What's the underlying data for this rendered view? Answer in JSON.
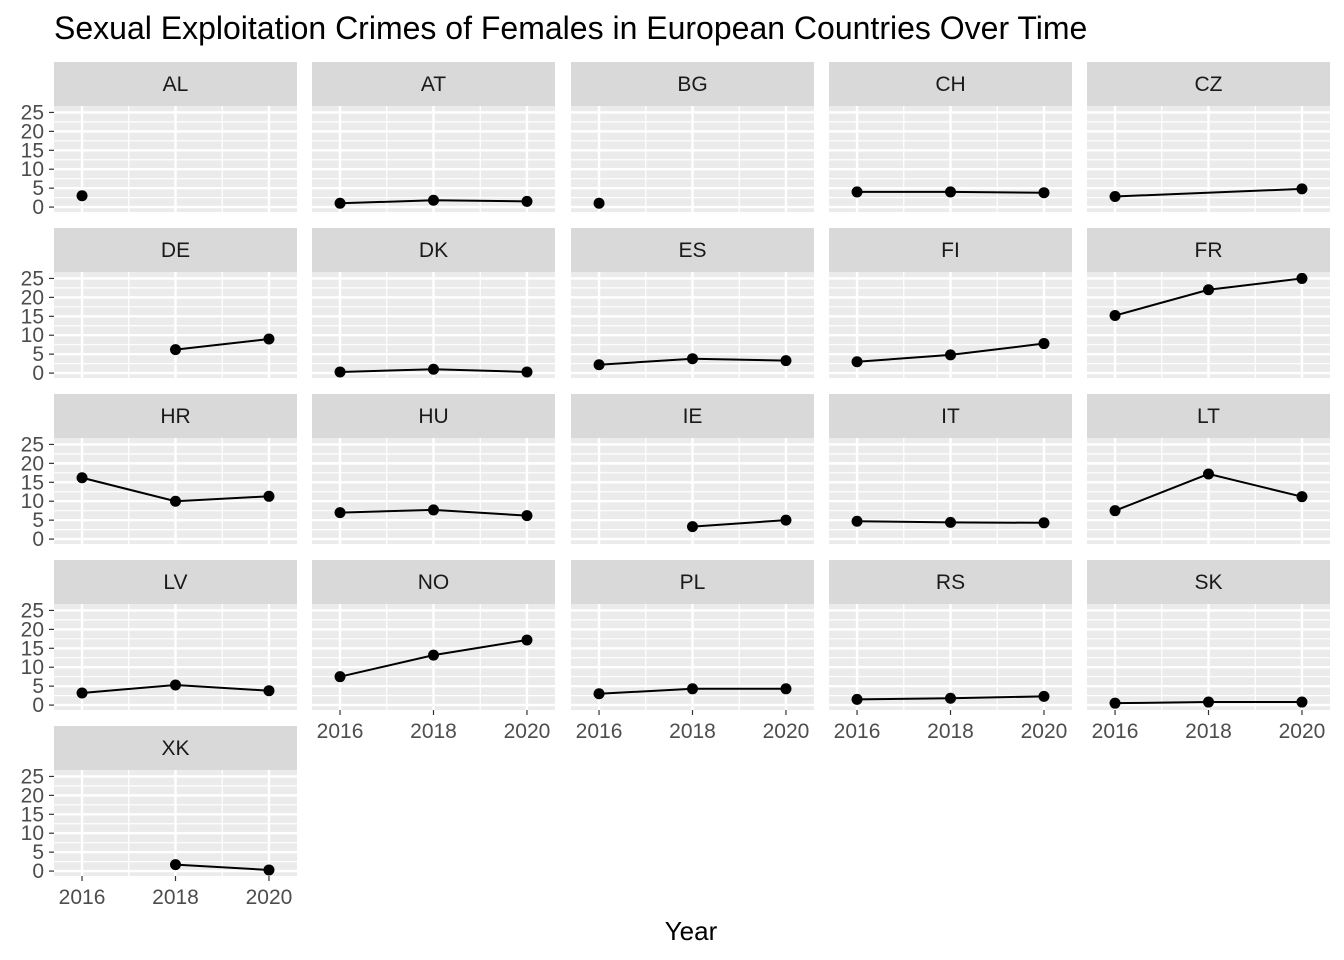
{
  "chart_data": {
    "type": "line",
    "title": "Sexual Exploitation Crimes of Females in European Countries Over Time",
    "xlabel": "Year",
    "ylabel": "",
    "xlim": [
      2015.4,
      2020.6
    ],
    "ylim": [
      -1.3,
      26.7
    ],
    "x_ticks": [
      2016,
      2018,
      2020
    ],
    "y_ticks": [
      0,
      5,
      10,
      15,
      20,
      25
    ],
    "grid": true,
    "panel_background": "#ebebeb",
    "strip_background": "#d9d9d9",
    "line_color": "#000000",
    "point_color": "#000000",
    "facets": [
      {
        "name": "AL",
        "points": [
          {
            "x": 2016,
            "y": 3.0
          }
        ]
      },
      {
        "name": "AT",
        "points": [
          {
            "x": 2016,
            "y": 1.0
          },
          {
            "x": 2018,
            "y": 1.8
          },
          {
            "x": 2020,
            "y": 1.5
          }
        ]
      },
      {
        "name": "BG",
        "points": [
          {
            "x": 2016,
            "y": 1.0
          }
        ]
      },
      {
        "name": "CH",
        "points": [
          {
            "x": 2016,
            "y": 4.0
          },
          {
            "x": 2018,
            "y": 4.0
          },
          {
            "x": 2020,
            "y": 3.8
          }
        ]
      },
      {
        "name": "CZ",
        "points": [
          {
            "x": 2016,
            "y": 2.8
          },
          {
            "x": 2020,
            "y": 4.8
          }
        ]
      },
      {
        "name": "DE",
        "points": [
          {
            "x": 2018,
            "y": 6.2
          },
          {
            "x": 2020,
            "y": 9.0
          }
        ]
      },
      {
        "name": "DK",
        "points": [
          {
            "x": 2016,
            "y": 0.3
          },
          {
            "x": 2018,
            "y": 1.0
          },
          {
            "x": 2020,
            "y": 0.3
          }
        ]
      },
      {
        "name": "ES",
        "points": [
          {
            "x": 2016,
            "y": 2.2
          },
          {
            "x": 2018,
            "y": 3.8
          },
          {
            "x": 2020,
            "y": 3.3
          }
        ]
      },
      {
        "name": "FI",
        "points": [
          {
            "x": 2016,
            "y": 3.0
          },
          {
            "x": 2018,
            "y": 4.8
          },
          {
            "x": 2020,
            "y": 7.8
          }
        ]
      },
      {
        "name": "FR",
        "points": [
          {
            "x": 2016,
            "y": 15.2
          },
          {
            "x": 2018,
            "y": 22.0
          },
          {
            "x": 2020,
            "y": 25.0
          }
        ]
      },
      {
        "name": "HR",
        "points": [
          {
            "x": 2016,
            "y": 16.2
          },
          {
            "x": 2018,
            "y": 10.0
          },
          {
            "x": 2020,
            "y": 11.3
          }
        ]
      },
      {
        "name": "HU",
        "points": [
          {
            "x": 2016,
            "y": 7.0
          },
          {
            "x": 2018,
            "y": 7.7
          },
          {
            "x": 2020,
            "y": 6.2
          }
        ]
      },
      {
        "name": "IE",
        "points": [
          {
            "x": 2018,
            "y": 3.3
          },
          {
            "x": 2020,
            "y": 5.0
          }
        ]
      },
      {
        "name": "IT",
        "points": [
          {
            "x": 2016,
            "y": 4.7
          },
          {
            "x": 2018,
            "y": 4.4
          },
          {
            "x": 2020,
            "y": 4.3
          }
        ]
      },
      {
        "name": "LT",
        "points": [
          {
            "x": 2016,
            "y": 7.5
          },
          {
            "x": 2018,
            "y": 17.2
          },
          {
            "x": 2020,
            "y": 11.2
          }
        ]
      },
      {
        "name": "LV",
        "points": [
          {
            "x": 2016,
            "y": 3.2
          },
          {
            "x": 2018,
            "y": 5.3
          },
          {
            "x": 2020,
            "y": 3.8
          }
        ]
      },
      {
        "name": "NO",
        "points": [
          {
            "x": 2016,
            "y": 7.5
          },
          {
            "x": 2018,
            "y": 13.2
          },
          {
            "x": 2020,
            "y": 17.2
          }
        ]
      },
      {
        "name": "PL",
        "points": [
          {
            "x": 2016,
            "y": 3.0
          },
          {
            "x": 2018,
            "y": 4.3
          },
          {
            "x": 2020,
            "y": 4.3
          }
        ]
      },
      {
        "name": "RS",
        "points": [
          {
            "x": 2016,
            "y": 1.5
          },
          {
            "x": 2018,
            "y": 1.8
          },
          {
            "x": 2020,
            "y": 2.3
          }
        ]
      },
      {
        "name": "SK",
        "points": [
          {
            "x": 2016,
            "y": 0.5
          },
          {
            "x": 2018,
            "y": 0.8
          },
          {
            "x": 2020,
            "y": 0.8
          }
        ]
      },
      {
        "name": "XK",
        "points": [
          {
            "x": 2018,
            "y": 1.7
          },
          {
            "x": 2020,
            "y": 0.3
          }
        ]
      }
    ]
  }
}
